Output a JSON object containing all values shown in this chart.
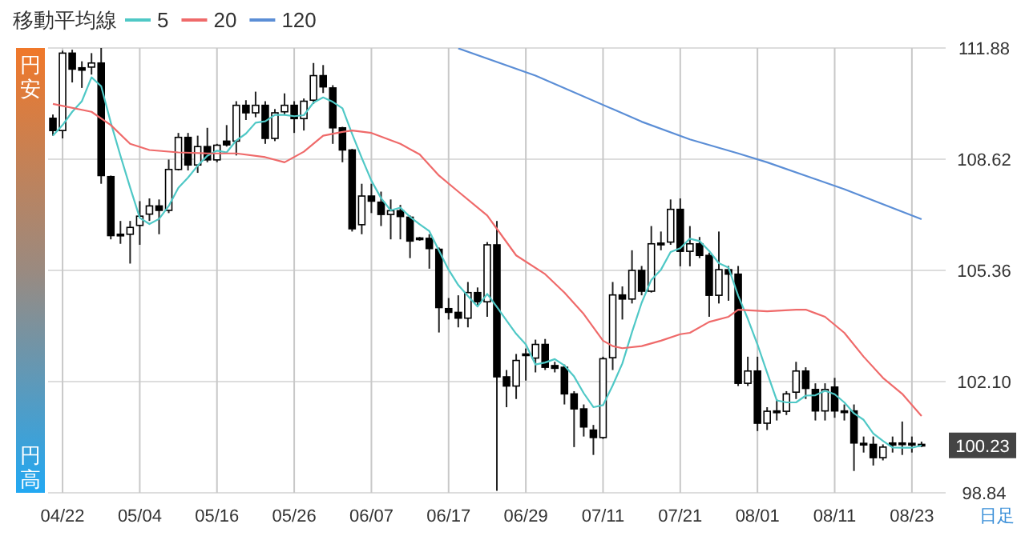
{
  "chart_data": {
    "type": "candlestick",
    "legend_title": "移動平均線",
    "legend": "top left",
    "grid": true,
    "ylim": [
      98.84,
      111.88
    ],
    "yticks": [
      {
        "value": 98.84,
        "label": "98.84"
      },
      {
        "value": 102.1,
        "label": "102.10"
      },
      {
        "value": 105.36,
        "label": "105.36"
      },
      {
        "value": 108.62,
        "label": "108.62"
      },
      {
        "value": 111.88,
        "label": "111.88"
      }
    ],
    "categories": [
      null,
      "04/22",
      null,
      null,
      null,
      null,
      null,
      null,
      null,
      "05/04",
      null,
      null,
      null,
      null,
      null,
      null,
      null,
      "05/16",
      null,
      null,
      null,
      null,
      null,
      null,
      null,
      "05/26",
      null,
      null,
      null,
      null,
      null,
      null,
      null,
      "06/07",
      null,
      null,
      null,
      null,
      null,
      null,
      null,
      "06/17",
      null,
      null,
      null,
      null,
      null,
      null,
      null,
      "06/29",
      null,
      null,
      null,
      null,
      null,
      null,
      null,
      "07/11",
      null,
      null,
      null,
      null,
      null,
      null,
      null,
      "07/21",
      null,
      null,
      null,
      null,
      null,
      null,
      null,
      "08/01",
      null,
      null,
      null,
      null,
      null,
      null,
      null,
      "08/11",
      null,
      null,
      null,
      null,
      null,
      null,
      null,
      "08/23",
      null
    ],
    "ohlc": [
      [
        109.82,
        109.93,
        109.31,
        109.46
      ],
      [
        109.46,
        111.8,
        109.23,
        111.73
      ],
      [
        111.73,
        111.83,
        110.87,
        111.26
      ],
      [
        111.3,
        111.49,
        110.71,
        111.23
      ],
      [
        111.32,
        111.73,
        111.1,
        111.44
      ],
      [
        111.44,
        111.88,
        107.9,
        108.14
      ],
      [
        108.11,
        108.14,
        106.27,
        106.38
      ],
      [
        106.42,
        106.81,
        106.14,
        106.39
      ],
      [
        106.42,
        106.81,
        105.56,
        106.62
      ],
      [
        106.68,
        107.39,
        106.11,
        106.95
      ],
      [
        107.01,
        107.47,
        106.81,
        107.25
      ],
      [
        107.25,
        107.44,
        106.42,
        107.12
      ],
      [
        107.12,
        108.61,
        107.04,
        108.32
      ],
      [
        108.32,
        109.39,
        108.29,
        109.26
      ],
      [
        109.26,
        109.39,
        108.29,
        108.45
      ],
      [
        108.45,
        109.31,
        108.22,
        108.99
      ],
      [
        108.99,
        109.54,
        108.53,
        108.6
      ],
      [
        108.6,
        109.07,
        108.53,
        109.03
      ],
      [
        109.15,
        109.62,
        108.99,
        109.04
      ],
      [
        109.15,
        110.32,
        108.73,
        110.2
      ],
      [
        110.2,
        110.35,
        109.77,
        109.98
      ],
      [
        109.98,
        110.6,
        109.85,
        110.2
      ],
      [
        110.2,
        110.32,
        109.07,
        109.23
      ],
      [
        109.23,
        110.09,
        109.15,
        109.98
      ],
      [
        110.01,
        110.55,
        109.93,
        110.2
      ],
      [
        110.2,
        110.32,
        109.39,
        109.81
      ],
      [
        109.81,
        110.4,
        109.46,
        110.32
      ],
      [
        110.35,
        111.44,
        110.24,
        111.07
      ],
      [
        111.07,
        111.38,
        110.56,
        110.74
      ],
      [
        110.71,
        110.79,
        109.07,
        109.54
      ],
      [
        109.54,
        109.57,
        108.53,
        108.89
      ],
      [
        108.89,
        108.92,
        106.5,
        106.58
      ],
      [
        106.7,
        107.9,
        106.42,
        107.54
      ],
      [
        107.54,
        107.9,
        107.04,
        107.39
      ],
      [
        107.36,
        107.67,
        106.66,
        107.0
      ],
      [
        107.0,
        107.44,
        106.27,
        107.11
      ],
      [
        107.11,
        107.28,
        106.27,
        106.94
      ],
      [
        106.92,
        106.97,
        105.72,
        106.22
      ],
      [
        106.31,
        106.34,
        106.23,
        106.27
      ],
      [
        106.3,
        106.42,
        105.41,
        106.0
      ],
      [
        105.98,
        106.03,
        103.54,
        104.27
      ],
      [
        104.24,
        104.55,
        103.92,
        104.13
      ],
      [
        104.13,
        104.63,
        103.69,
        103.96
      ],
      [
        103.96,
        105.02,
        103.69,
        104.71
      ],
      [
        104.71,
        104.86,
        104.32,
        104.44
      ],
      [
        104.44,
        106.19,
        104.0,
        106.11
      ],
      [
        106.11,
        106.81,
        98.9,
        102.24
      ],
      [
        102.24,
        102.44,
        101.35,
        101.97
      ],
      [
        101.97,
        102.91,
        101.59,
        102.72
      ],
      [
        102.91,
        103.07,
        102.13,
        102.9
      ],
      [
        102.79,
        103.33,
        102.37,
        103.19
      ],
      [
        103.19,
        103.35,
        102.44,
        102.52
      ],
      [
        102.57,
        102.68,
        102.37,
        102.49
      ],
      [
        102.52,
        102.6,
        101.43,
        101.74
      ],
      [
        101.74,
        101.82,
        100.18,
        101.3
      ],
      [
        101.3,
        101.43,
        100.49,
        100.77
      ],
      [
        100.68,
        100.83,
        99.95,
        100.46
      ],
      [
        100.46,
        102.83,
        100.42,
        102.77
      ],
      [
        102.8,
        105.02,
        102.44,
        104.64
      ],
      [
        104.64,
        104.89,
        103.92,
        104.52
      ],
      [
        104.52,
        105.95,
        104.39,
        105.36
      ],
      [
        105.36,
        105.49,
        104.63,
        104.75
      ],
      [
        104.75,
        106.66,
        104.71,
        106.14
      ],
      [
        106.16,
        106.5,
        105.95,
        106.11
      ],
      [
        106.19,
        107.44,
        106.11,
        107.15
      ],
      [
        107.15,
        107.47,
        105.48,
        105.92
      ],
      [
        105.92,
        106.66,
        105.48,
        106.14
      ],
      [
        106.14,
        106.34,
        105.72,
        105.8
      ],
      [
        105.8,
        105.88,
        104.0,
        104.63
      ],
      [
        104.63,
        106.5,
        104.39,
        105.38
      ],
      [
        105.38,
        105.49,
        104.47,
        105.25
      ],
      [
        105.25,
        105.49,
        101.97,
        102.05
      ],
      [
        102.05,
        102.83,
        101.97,
        102.41
      ],
      [
        102.41,
        102.83,
        100.65,
        100.88
      ],
      [
        100.88,
        101.35,
        100.68,
        101.23
      ],
      [
        101.24,
        101.58,
        100.96,
        101.19
      ],
      [
        101.23,
        101.82,
        101.12,
        101.74
      ],
      [
        101.79,
        102.68,
        101.59,
        102.41
      ],
      [
        102.41,
        102.52,
        101.59,
        101.9
      ],
      [
        101.87,
        102.05,
        100.96,
        101.24
      ],
      [
        101.24,
        102.05,
        100.96,
        101.87
      ],
      [
        101.94,
        102.21,
        101.04,
        101.24
      ],
      [
        101.24,
        101.43,
        100.96,
        101.21
      ],
      [
        101.24,
        101.43,
        99.48,
        100.3
      ],
      [
        100.29,
        100.49,
        100.02,
        100.26
      ],
      [
        100.26,
        100.49,
        99.64,
        99.87
      ],
      [
        99.87,
        100.26,
        99.79,
        100.18
      ],
      [
        100.3,
        100.49,
        100.02,
        100.24
      ],
      [
        100.3,
        100.93,
        99.95,
        100.26
      ],
      [
        100.29,
        100.49,
        100.02,
        100.24
      ],
      [
        100.26,
        100.34,
        100.18,
        100.23
      ]
    ],
    "series": [
      {
        "name": "5",
        "type": "line",
        "color": "#4fc8c6",
        "values": [
          109.31,
          109.62,
          110.01,
          110.32,
          111.02,
          110.76,
          109.69,
          108.72,
          107.79,
          106.9,
          106.72,
          106.87,
          107.25,
          107.78,
          108.08,
          108.43,
          108.72,
          108.87,
          108.82,
          109.17,
          109.37,
          109.69,
          109.73,
          109.92,
          109.92,
          109.88,
          109.91,
          110.28,
          110.43,
          110.3,
          110.11,
          109.36,
          108.66,
          107.99,
          107.48,
          107.12,
          107.2,
          106.93,
          106.71,
          106.51,
          105.94,
          105.38,
          104.93,
          104.61,
          104.3,
          104.67,
          104.29,
          103.89,
          103.5,
          103.19,
          102.6,
          102.66,
          102.76,
          102.57,
          102.25,
          101.76,
          101.35,
          101.41,
          101.99,
          102.63,
          103.55,
          104.41,
          105.08,
          105.38,
          105.9,
          106.01,
          106.29,
          106.22,
          105.93,
          105.57,
          105.44,
          104.62,
          103.94,
          103.19,
          102.36,
          101.55,
          101.49,
          101.49,
          101.69,
          101.7,
          101.83,
          101.73,
          101.49,
          101.17,
          100.98,
          100.58,
          100.36,
          100.17,
          100.16,
          100.16,
          100.23
        ]
      },
      {
        "name": "20",
        "type": "line",
        "color": "#ef6a6a",
        "values": [
          110.24,
          null,
          null,
          null,
          110.01,
          null,
          109.62,
          null,
          109.07,
          null,
          108.89,
          null,
          null,
          108.82,
          null,
          null,
          108.79,
          null,
          null,
          108.79,
          null,
          null,
          108.68,
          null,
          108.53,
          null,
          108.84,
          null,
          109.31,
          null,
          109.42,
          109.46,
          null,
          109.39,
          null,
          null,
          109.07,
          null,
          108.76,
          null,
          108.14,
          null,
          107.67,
          null,
          null,
          106.97,
          106.58,
          null,
          105.8,
          null,
          null,
          105.25,
          null,
          104.71,
          null,
          104.08,
          null,
          103.3,
          103.14,
          103.08,
          null,
          103.14,
          null,
          103.3,
          null,
          103.49,
          103.53,
          null,
          103.85,
          null,
          104.0,
          104.21,
          null,
          null,
          104.16,
          null,
          null,
          104.21,
          104.21,
          null,
          104.0,
          null,
          103.53,
          null,
          102.83,
          null,
          102.21,
          null,
          101.74,
          null,
          101.09
        ]
      },
      {
        "name": "120",
        "type": "line",
        "color": "#5b8ed6",
        "values": [
          null,
          null,
          null,
          null,
          null,
          null,
          null,
          null,
          null,
          null,
          null,
          null,
          null,
          null,
          null,
          null,
          null,
          null,
          null,
          null,
          null,
          null,
          null,
          null,
          null,
          null,
          null,
          null,
          null,
          null,
          null,
          null,
          null,
          null,
          null,
          null,
          null,
          null,
          null,
          null,
          null,
          null,
          111.87,
          null,
          null,
          null,
          null,
          null,
          null,
          null,
          111.07,
          null,
          null,
          null,
          null,
          null,
          null,
          null,
          110.09,
          null,
          null,
          109.72,
          null,
          null,
          null,
          null,
          109.2,
          null,
          null,
          null,
          null,
          108.79,
          null,
          null,
          108.53,
          null,
          null,
          null,
          null,
          null,
          null,
          null,
          107.74,
          null,
          null,
          null,
          null,
          null,
          null,
          null,
          106.86
        ]
      }
    ],
    "annotations": [
      "円安",
      "円高",
      "日足",
      {
        "text": "100.23",
        "y": 100.23
      }
    ]
  }
}
